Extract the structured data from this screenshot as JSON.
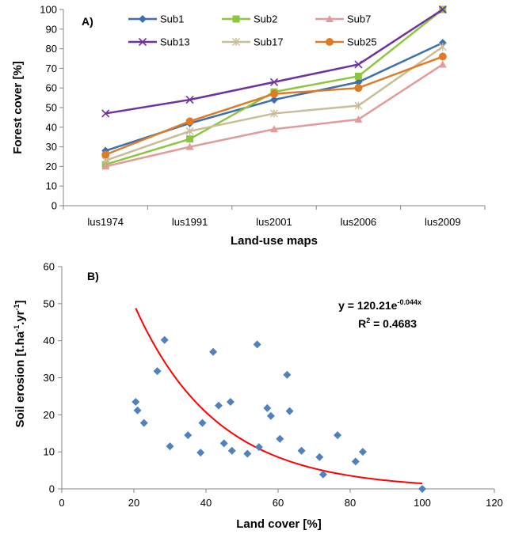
{
  "chart_data": [
    {
      "type": "line",
      "panel_label": "A)",
      "xlabel": "Land-use maps",
      "ylabel": "Forest cover [%]",
      "categories": [
        "lus1974",
        "lus1991",
        "lus2001",
        "lus2006",
        "lus2009"
      ],
      "ylim": [
        0,
        100
      ],
      "yticks": [
        0,
        10,
        20,
        30,
        40,
        50,
        60,
        70,
        80,
        90,
        100
      ],
      "grid": false,
      "legend_position": "top",
      "series": [
        {
          "name": "Sub1",
          "color": "#3d6fb0",
          "marker": "diamond",
          "values": [
            28,
            42,
            54,
            63,
            83
          ]
        },
        {
          "name": "Sub2",
          "color": "#8cc63e",
          "marker": "square",
          "values": [
            21,
            34,
            58,
            66,
            100
          ]
        },
        {
          "name": "Sub7",
          "color": "#e19b9b",
          "marker": "triangle",
          "values": [
            20,
            30,
            39,
            44,
            72
          ]
        },
        {
          "name": "Sub13",
          "color": "#7030a0",
          "marker": "x",
          "values": [
            47,
            54,
            63,
            72,
            100
          ]
        },
        {
          "name": "Sub17",
          "color": "#c8bd98",
          "marker": "star",
          "values": [
            23,
            38,
            47,
            51,
            81
          ]
        },
        {
          "name": "Sub25",
          "color": "#e07b25",
          "marker": "circle",
          "values": [
            26,
            43,
            57,
            60,
            76
          ]
        }
      ]
    },
    {
      "type": "scatter",
      "panel_label": "B)",
      "xlabel": "Land cover [%]",
      "ylabel_parts": [
        "Soil erosion [t.ha",
        "-1",
        ".yr",
        "-1",
        "]"
      ],
      "xlim": [
        0,
        120
      ],
      "ylim": [
        0,
        60
      ],
      "xticks": [
        0,
        20,
        40,
        60,
        80,
        100,
        120
      ],
      "yticks": [
        0,
        10,
        20,
        30,
        40,
        50,
        60
      ],
      "grid": false,
      "point_color": "#4f81bd",
      "points": [
        [
          20.5,
          23.5
        ],
        [
          21,
          21.2
        ],
        [
          22.8,
          17.8
        ],
        [
          26.5,
          31.8
        ],
        [
          28.5,
          40.2
        ],
        [
          30,
          11.5
        ],
        [
          35,
          14.5
        ],
        [
          38.5,
          9.8
        ],
        [
          39,
          17.8
        ],
        [
          42,
          37
        ],
        [
          43.5,
          22.5
        ],
        [
          45,
          12.3
        ],
        [
          46.8,
          23.5
        ],
        [
          47.2,
          10.3
        ],
        [
          51.5,
          9.5
        ],
        [
          54.2,
          39
        ],
        [
          54.7,
          11.3
        ],
        [
          57,
          21.8
        ],
        [
          58,
          19.7
        ],
        [
          60.5,
          13.5
        ],
        [
          62.5,
          30.8
        ],
        [
          63.2,
          21
        ],
        [
          66.5,
          10.3
        ],
        [
          71.5,
          8.6
        ],
        [
          72.5,
          3.9
        ],
        [
          76.5,
          14.5
        ],
        [
          81.5,
          7.4
        ],
        [
          83.5,
          10
        ],
        [
          100,
          0
        ]
      ],
      "trendline": {
        "type": "exponential",
        "a": 120.21,
        "b": -0.044,
        "x_range": [
          20.5,
          100
        ],
        "color": "#ff0000"
      },
      "equation_parts": [
        "y = 120.21e",
        "-0.044x"
      ],
      "r2_parts": [
        "R",
        "2",
        " = 0.4683"
      ]
    }
  ]
}
